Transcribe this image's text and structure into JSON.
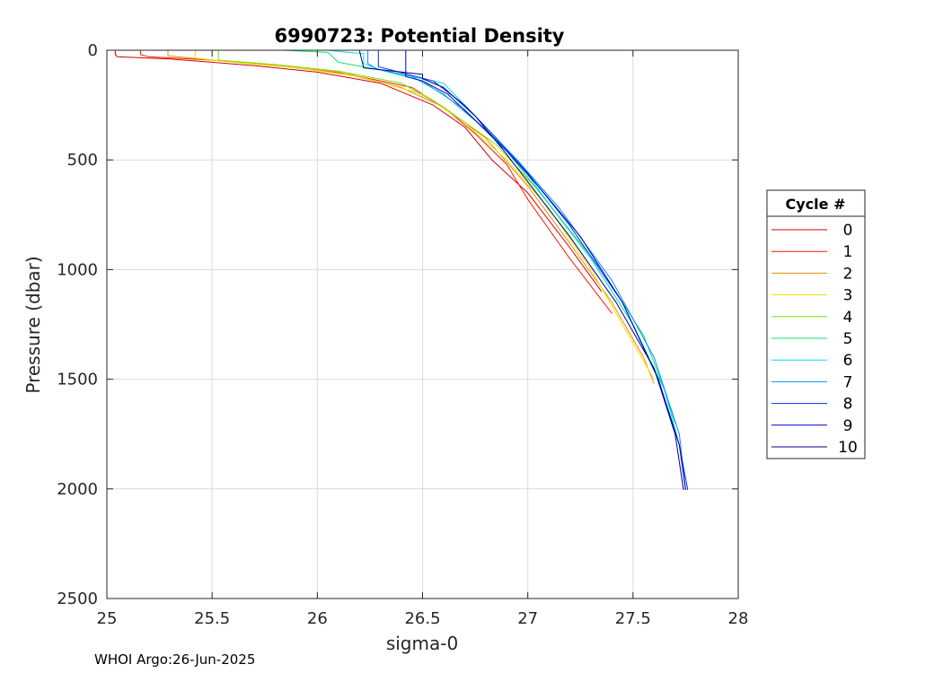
{
  "chart_data": {
    "type": "line",
    "title": "6990723: Potential Density",
    "xlabel": "sigma-0",
    "ylabel": "Pressure (dbar)",
    "xlim": [
      25,
      28
    ],
    "ylim": [
      0,
      2500
    ],
    "y_reversed": true,
    "grid": true,
    "xticks": [
      25,
      25.5,
      26,
      26.5,
      27,
      27.5,
      28
    ],
    "xtick_labels": [
      "25",
      "25.5",
      "26",
      "26.5",
      "27",
      "27.5",
      "28"
    ],
    "yticks": [
      0,
      500,
      1000,
      1500,
      2000,
      2500
    ],
    "ytick_labels": [
      "0",
      "500",
      "1000",
      "1500",
      "2000",
      "2500"
    ],
    "legend_title": "Cycle #",
    "legend_position": "right",
    "series": [
      {
        "name": "0",
        "color": "#d40000",
        "x": [
          25.04,
          25.04,
          25.05,
          25.3,
          25.7,
          26.0,
          26.3,
          26.55,
          26.7,
          26.83,
          27.0,
          27.2,
          27.35
        ],
        "y": [
          0,
          20,
          30,
          40,
          70,
          100,
          150,
          250,
          350,
          500,
          650,
          900,
          1100
        ]
      },
      {
        "name": "1",
        "color": "#f51a00",
        "x": [
          25.16,
          25.16,
          25.2,
          25.5,
          25.85,
          26.15,
          26.45,
          26.6,
          26.75,
          26.9,
          27.0,
          27.2,
          27.4
        ],
        "y": [
          0,
          20,
          30,
          45,
          75,
          110,
          170,
          260,
          380,
          520,
          680,
          950,
          1200
        ]
      },
      {
        "name": "2",
        "color": "#e69000",
        "x": [
          25.29,
          25.29,
          25.5,
          25.8,
          26.1,
          26.4,
          26.6,
          26.8,
          27.0,
          27.2,
          27.4,
          27.55,
          27.6
        ],
        "y": [
          0,
          25,
          45,
          70,
          100,
          170,
          260,
          400,
          620,
          880,
          1150,
          1400,
          1520
        ]
      },
      {
        "name": "3",
        "color": "#f0e000",
        "x": [
          25.42,
          25.42,
          25.6,
          25.9,
          26.2,
          26.5,
          26.7,
          26.9,
          27.1,
          27.3,
          27.45,
          27.6
        ],
        "y": [
          0,
          35,
          55,
          80,
          120,
          200,
          330,
          500,
          720,
          1000,
          1250,
          1500
        ]
      },
      {
        "name": "4",
        "color": "#7ae000",
        "x": [
          25.53,
          25.53,
          25.8,
          26.1,
          26.4,
          26.6,
          26.85,
          27.05,
          27.3,
          27.5,
          27.62
        ],
        "y": [
          0,
          45,
          65,
          95,
          150,
          260,
          430,
          640,
          950,
          1250,
          1500
        ]
      },
      {
        "name": "5",
        "color": "#10e070",
        "x": [
          25.83,
          25.95,
          26.05,
          26.1,
          26.3,
          26.5,
          26.7,
          26.9,
          27.1,
          27.35,
          27.55,
          27.65,
          27.7
        ],
        "y": [
          0,
          5,
          10,
          55,
          90,
          140,
          270,
          460,
          700,
          1000,
          1300,
          1550,
          1700
        ]
      },
      {
        "name": "6",
        "color": "#00e0e0",
        "x": [
          26.05,
          26.15,
          26.22,
          26.22,
          26.3,
          26.6,
          26.75,
          26.95,
          27.1,
          27.3,
          27.5,
          27.65,
          27.72
        ],
        "y": [
          0,
          10,
          15,
          60,
          90,
          150,
          300,
          500,
          700,
          950,
          1250,
          1550,
          1800
        ]
      },
      {
        "name": "7",
        "color": "#0090ff",
        "x": [
          26.24,
          26.24,
          26.28,
          26.45,
          26.6,
          26.8,
          26.95,
          27.15,
          27.4,
          27.6,
          27.72,
          27.75
        ],
        "y": [
          0,
          60,
          85,
          120,
          200,
          360,
          500,
          720,
          1050,
          1400,
          1750,
          2005
        ]
      },
      {
        "name": "8",
        "color": "#0030ff",
        "x": [
          26.29,
          26.29,
          26.35,
          26.55,
          26.7,
          26.85,
          27.0,
          27.2,
          27.45,
          27.62,
          27.72,
          27.76
        ],
        "y": [
          0,
          75,
          90,
          140,
          250,
          400,
          560,
          800,
          1150,
          1500,
          1800,
          2005
        ]
      },
      {
        "name": "9",
        "color": "#0000c8",
        "x": [
          26.42,
          26.42,
          26.5,
          26.62,
          26.75,
          26.9,
          27.05,
          27.25,
          27.45,
          27.62,
          27.72,
          27.75
        ],
        "y": [
          0,
          120,
          140,
          200,
          320,
          460,
          620,
          850,
          1150,
          1500,
          1800,
          2005
        ]
      },
      {
        "name": "10",
        "color": "#000080",
        "x": [
          26.2,
          26.22,
          26.5,
          26.5,
          26.6,
          26.75,
          26.88,
          27.0,
          27.2,
          27.42,
          27.6,
          27.7,
          27.74
        ],
        "y": [
          0,
          80,
          110,
          130,
          170,
          300,
          450,
          600,
          850,
          1150,
          1450,
          1750,
          2005
        ]
      }
    ]
  },
  "footer": {
    "text": "WHOI Argo:26-Jun-2025"
  }
}
